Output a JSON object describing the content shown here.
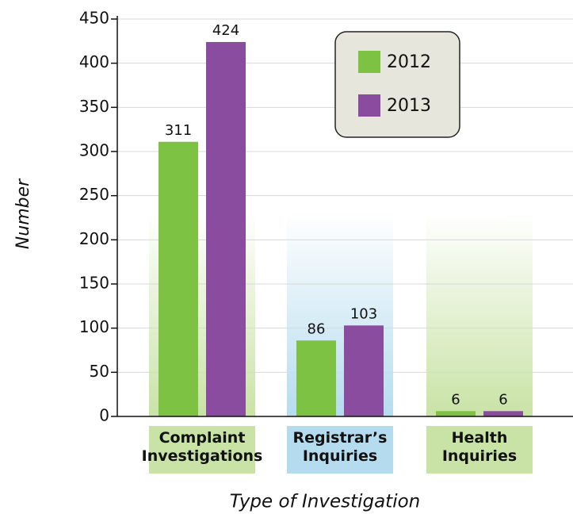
{
  "chart_data": {
    "type": "bar",
    "x_label": "Type of Investigation",
    "y_label": "Number",
    "categories": [
      "Complaint\nInvestigations",
      "Registrar’s\nInquiries",
      "Health\nInquiries"
    ],
    "series": [
      {
        "name": "2012",
        "color": "#7dc242",
        "values": [
          311,
          86,
          6
        ]
      },
      {
        "name": "2013",
        "color": "#8a4c9e",
        "values": [
          424,
          103,
          6
        ]
      }
    ],
    "band_colors": [
      "#c9e3a6",
      "#b5dcee",
      "#c9e3a6"
    ],
    "ylim": [
      0,
      450
    ],
    "yticks": [
      0,
      50,
      100,
      150,
      200,
      250,
      300,
      350,
      400,
      450
    ],
    "grid": true,
    "legend": "upper right"
  }
}
